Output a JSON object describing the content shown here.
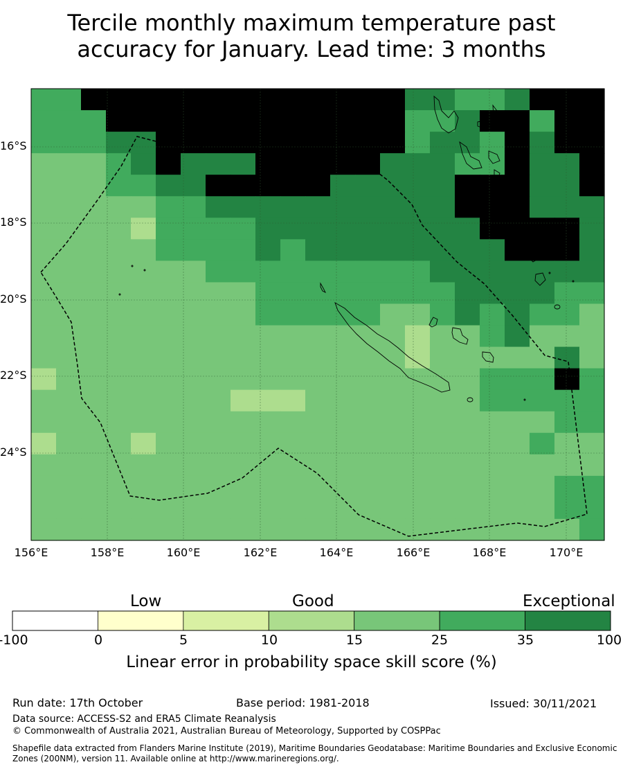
{
  "title": {
    "line1": "Tercile monthly maximum temperature past",
    "line2": "accuracy for January. Lead time: 3 months"
  },
  "map": {
    "lat_ticks": [
      "16°S",
      "18°S",
      "20°S",
      "22°S",
      "24°S"
    ],
    "lon_ticks": [
      "156°E",
      "158°E",
      "160°E",
      "162°E",
      "164°E",
      "166°E",
      "168°E",
      "170°E"
    ],
    "grid_values": [
      "55777777777777766556777",
      "55577777777777755677577",
      "55566777777777756657677",
      "44456766677777666557667",
      "44455667777766666777667",
      "44444556666666666777666",
      "44443555566666666677776",
      "44444555565666666667776",
      "44444445555555556666666",
      "44444444455555555666655",
      "44444444455555445656554",
      "44444444444444434456444",
      "44444444444444434444464",
      "34444444444444444455575",
      "44444444333444444455555",
      "44444444444444444444455",
      "34443444444444444444544",
      "44444444444444444444444",
      "44444444444444444444455",
      "44444444444444444444455",
      "44444444444444444444445"
    ]
  },
  "colorbar": {
    "categories": [
      "Low",
      "Good",
      "Exceptional"
    ],
    "ticks": [
      "-100",
      "0",
      "5",
      "10",
      "15",
      "25",
      "35",
      "100"
    ],
    "colors": [
      "#ffffff",
      "#ffffcc",
      "#d9f0a3",
      "#addd8e",
      "#78c679",
      "#41ab5d",
      "#238443"
    ],
    "label": "Linear error in probability space skill score (%)"
  },
  "footer": {
    "run_date": "Run date: 17th October",
    "base_period": "Base period: 1981-2018",
    "issued": "Issued: 30/11/2021",
    "data_source": "Data source: ACCESS-S2 and ERA5 Climate Reanalysis",
    "copyright": "© Commonwealth of Australia 2021, Australian Bureau of Meteorology, Supported by COSPPac",
    "shapefile": "Shapefile data extracted from Flanders Marine Institute (2019), Maritime Boundaries Geodatabase: Maritime Boundaries and Exclusive Economic Zones (200NM), version 11. Available online at http://www.marineregions.org/."
  }
}
